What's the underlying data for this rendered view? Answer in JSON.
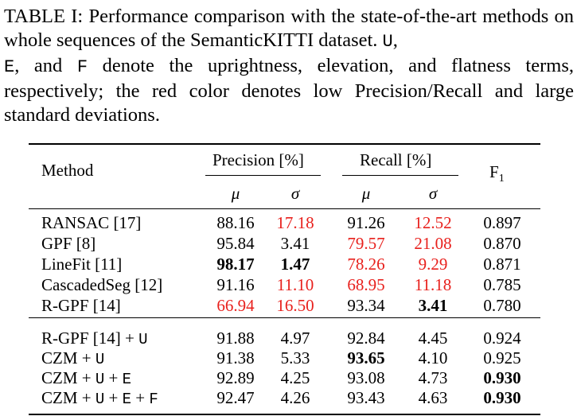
{
  "caption": {
    "prefix": "TABLE I: Performance comparison with the state-of-the-art methods on whole sequences of the SemanticKITTI dataset. ",
    "u": "U",
    "sep1": ",",
    "e": "E",
    "mid": ", and ",
    "f": "F",
    "suffix": " denote the uprightness, elevation, and flatness terms, respectively; the red color denotes low Precision/Recall and large standard deviations."
  },
  "table": {
    "header": {
      "method": "Method",
      "precision": "Precision [%]",
      "recall": "Recall [%]",
      "f1": "F",
      "f1_sub": "1",
      "mu": "μ",
      "sigma": "σ"
    },
    "group1": [
      {
        "method": "RANSAC [17]",
        "p_mu": "88.16",
        "p_sigma": "17.18",
        "r_mu": "91.26",
        "r_sigma": "12.52",
        "f1": "0.897"
      },
      {
        "method": "GPF [8]",
        "p_mu": "95.84",
        "p_sigma": "3.41",
        "r_mu": "79.57",
        "r_sigma": "21.08",
        "f1": "0.870"
      },
      {
        "method": "LineFit [11]",
        "p_mu": "98.17",
        "p_sigma": "1.47",
        "r_mu": "78.26",
        "r_sigma": "9.29",
        "f1": "0.871"
      },
      {
        "method": "CascadedSeg [12]",
        "p_mu": "91.16",
        "p_sigma": "11.10",
        "r_mu": "68.95",
        "r_sigma": "11.18",
        "f1": "0.785"
      },
      {
        "method": "R-GPF [14]",
        "p_mu": "66.94",
        "p_sigma": "16.50",
        "r_mu": "93.34",
        "r_sigma": "3.41",
        "f1": "0.780"
      }
    ],
    "group2": [
      {
        "method_a": "R-GPF [14] + ",
        "method_b": "U",
        "method_c": "",
        "method_d": "",
        "method_e": "",
        "method_f": "",
        "p_mu": "91.88",
        "p_sigma": "4.97",
        "r_mu": "92.84",
        "r_sigma": "4.45",
        "f1": "0.924"
      },
      {
        "method_a": "CZM + ",
        "method_b": "U",
        "method_c": "",
        "method_d": "",
        "method_e": "",
        "method_f": "",
        "p_mu": "91.38",
        "p_sigma": "5.33",
        "r_mu": "93.65",
        "r_sigma": "4.10",
        "f1": "0.925"
      },
      {
        "method_a": "CZM + ",
        "method_b": "U",
        "method_c": " + ",
        "method_d": "E",
        "method_e": "",
        "method_f": "",
        "p_mu": "92.89",
        "p_sigma": "4.25",
        "r_mu": "93.08",
        "r_sigma": "4.73",
        "f1": "0.930"
      },
      {
        "method_a": "CZM + ",
        "method_b": "U",
        "method_c": " + ",
        "method_d": "E",
        "method_e": " + ",
        "method_f": "F",
        "p_mu": "92.47",
        "p_sigma": "4.26",
        "r_mu": "93.43",
        "r_sigma": "4.63",
        "f1": "0.930"
      }
    ],
    "colors": {
      "red": "#e8211d"
    }
  }
}
